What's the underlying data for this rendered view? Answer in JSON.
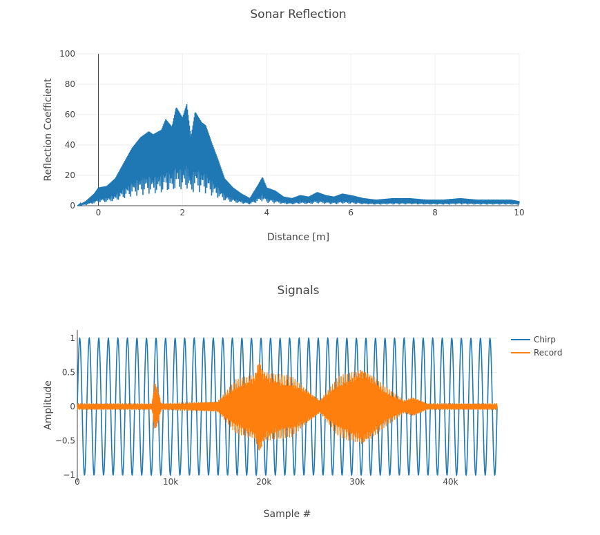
{
  "colors": {
    "series_blue": "#1f77b4",
    "series_orange": "#ff7f0e",
    "grid": "#eeeeee",
    "text": "#444444"
  },
  "chart_data": [
    {
      "type": "line",
      "title": "Sonar Reflection",
      "xlabel": "Distance [m]",
      "ylabel": "Reflection Coefficient",
      "xlim": [
        -0.5,
        10
      ],
      "ylim": [
        0,
        100
      ],
      "xticks": [
        0,
        2,
        4,
        6,
        8,
        10
      ],
      "xtick_labels": [
        "0",
        "2",
        "4",
        "6",
        "8",
        "10"
      ],
      "yticks": [
        0,
        20,
        40,
        60,
        80,
        100
      ],
      "ytick_labels": [
        "0",
        "20",
        "40",
        "60",
        "80",
        "100"
      ],
      "grid": true,
      "series": [
        {
          "color": "#1f77b4",
          "envelope": {
            "x": [
              -0.5,
              -0.3,
              -0.1,
              0.0,
              0.2,
              0.4,
              0.6,
              0.8,
              1.0,
              1.2,
              1.3,
              1.5,
              1.6,
              1.75,
              1.85,
              2.0,
              2.1,
              2.2,
              2.3,
              2.45,
              2.55,
              2.7,
              2.85,
              3.0,
              3.2,
              3.4,
              3.6,
              3.8,
              3.9,
              4.0,
              4.2,
              4.4,
              4.6,
              4.8,
              5.0,
              5.2,
              5.4,
              5.6,
              5.8,
              6.0,
              6.3,
              6.6,
              7.0,
              7.4,
              7.8,
              8.2,
              8.6,
              9.0,
              9.4,
              9.8,
              10.0
            ],
            "y": [
              0,
              3,
              8,
              12,
              13,
              18,
              28,
              38,
              45,
              49,
              47,
              50,
              57,
              52,
              65,
              58,
              67,
              45,
              62,
              55,
              53,
              41,
              30,
              18,
              12,
              8,
              5,
              14,
              19,
              12,
              10,
              6,
              5,
              7,
              6,
              9,
              7,
              6,
              8,
              7,
              5,
              4,
              5,
              5,
              4,
              4,
              5,
              4,
              4,
              4,
              3
            ]
          }
        }
      ]
    },
    {
      "type": "line",
      "title": "Signals",
      "xlabel": "Sample #",
      "ylabel": "Amplitude",
      "xlim": [
        0,
        45000
      ],
      "ylim": [
        -1,
        1
      ],
      "xticks": [
        0,
        10000,
        20000,
        30000,
        40000
      ],
      "xtick_labels": [
        "0",
        "10k",
        "20k",
        "30k",
        "40k"
      ],
      "yticks": [
        -1,
        -0.5,
        0,
        0.5,
        1
      ],
      "ytick_labels": [
        "−1",
        "−0.5",
        "0",
        "0.5",
        "1"
      ],
      "grid": true,
      "legend": "top-right",
      "series": [
        {
          "name": "Chirp",
          "color": "#1f77b4",
          "amplitude": 1,
          "cycles": 44
        },
        {
          "name": "Record",
          "color": "#ff7f0e",
          "envelope": {
            "x": [
              0,
              8000,
              8300,
              8600,
              9000,
              15000,
              17000,
              19000,
              19500,
              20000,
              21000,
              23000,
              26000,
              28000,
              30000,
              30500,
              31500,
              33000,
              35000,
              36000,
              37500,
              40000,
              45000
            ],
            "y": [
              0.05,
              0.05,
              0.4,
              0.3,
              0.05,
              0.08,
              0.4,
              0.5,
              0.75,
              0.55,
              0.5,
              0.45,
              0.1,
              0.45,
              0.55,
              0.6,
              0.5,
              0.3,
              0.1,
              0.15,
              0.05,
              0.05,
              0.05
            ]
          }
        }
      ]
    }
  ]
}
